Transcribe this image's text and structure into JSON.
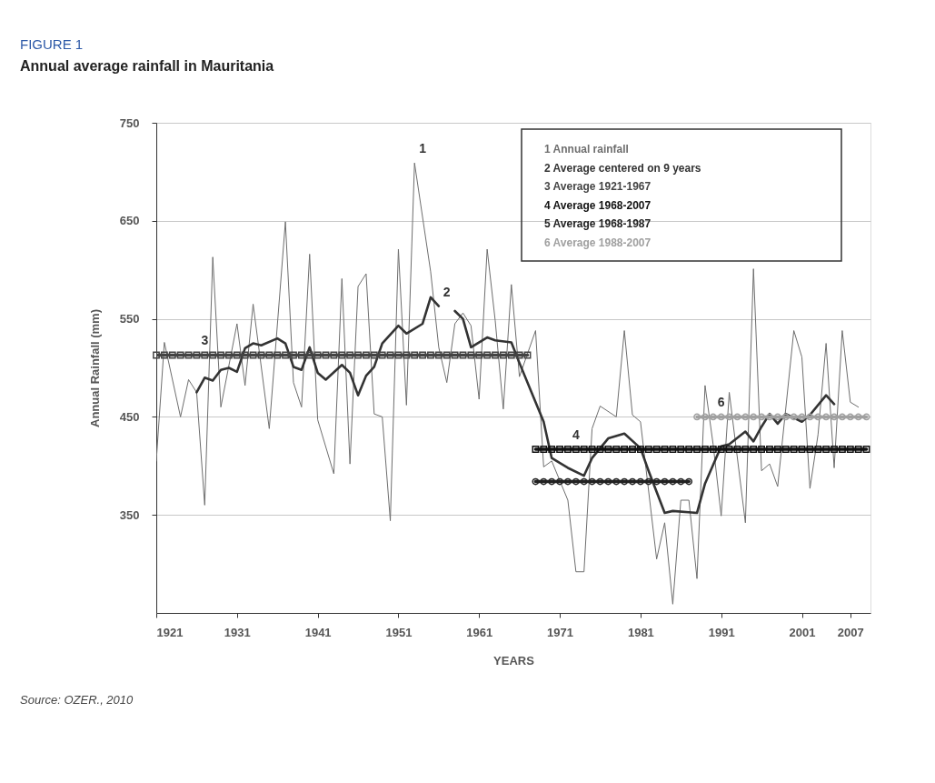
{
  "chart_data": {
    "type": "line",
    "title": "FIGURE 1",
    "subtitle": "Annual average rainfall in Mauritania",
    "xlabel": "YEARS",
    "ylabel": "Annual Rainfall (mm)",
    "xlim": [
      1921,
      2009.5
    ],
    "xticks": [
      1921,
      1931,
      1941,
      1951,
      1961,
      1971,
      1981,
      1991,
      2001,
      2007
    ],
    "ylim": [
      250,
      750
    ],
    "yticks": [
      350,
      450,
      550,
      650,
      750
    ],
    "grid": "y",
    "legend": "top right",
    "series": [
      {
        "name": "1 Annual rainfall",
        "color": "#6e6e6e",
        "marker": "none",
        "x": [
          1921,
          1922,
          1924,
          1925,
          1926,
          1927,
          1928,
          1929,
          1931,
          1932,
          1933,
          1935,
          1937,
          1938,
          1939,
          1940,
          1941,
          1943,
          1944,
          1945,
          1946,
          1947,
          1948,
          1949,
          1950,
          1951,
          1952,
          1953,
          1955,
          1956,
          1957,
          1958,
          1959,
          1960,
          1961,
          1962,
          1963,
          1964,
          1965,
          1966,
          1968,
          1969,
          1970,
          1972,
          1973,
          1974,
          1975,
          1976,
          1978,
          1979,
          1980,
          1981,
          1983,
          1984,
          1985,
          1986,
          1987,
          1988,
          1989,
          1990,
          1991,
          1992,
          1994,
          1995,
          1996,
          1997,
          1998,
          2000,
          2001,
          2002,
          2003,
          2004,
          2005,
          2006,
          2007,
          2008
        ],
        "values": [
          405,
          526,
          450,
          488,
          475,
          360,
          613,
          460,
          545,
          482,
          565,
          438,
          649,
          485,
          460,
          616,
          447,
          392,
          591,
          402,
          583,
          596,
          453,
          450,
          344,
          621,
          462,
          709,
          598,
          521,
          485,
          545,
          556,
          543,
          468,
          621,
          548,
          458,
          585,
          491,
          538,
          399,
          405,
          365,
          292,
          292,
          438,
          461,
          450,
          538,
          452,
          445,
          305,
          342,
          259,
          365,
          365,
          285,
          482,
          422,
          349,
          475,
          342,
          601,
          395,
          402,
          379,
          538,
          511,
          377,
          432,
          525,
          398,
          538,
          465,
          460
        ]
      },
      {
        "name": "2 Average centered on 9 years",
        "color": "#333333",
        "marker": "none",
        "x": [
          1926,
          1927,
          1928,
          1929,
          1930,
          1931,
          1932,
          1933,
          1934,
          1936,
          1937,
          1938,
          1939,
          1940,
          1941,
          1942,
          1944,
          1945,
          1946,
          1947,
          1948,
          1949,
          1951,
          1952,
          1954,
          1955,
          1956,
          1957,
          1958,
          1959,
          1960,
          1962,
          1963,
          1965,
          1966,
          1968,
          1969,
          1970,
          1972,
          1974,
          1975,
          1977,
          1979,
          1981,
          1982,
          1984,
          1985,
          1988,
          1989,
          1991,
          1992,
          1994,
          1995,
          1996,
          1997,
          1998,
          1999,
          2001,
          2002,
          2004,
          2005
        ],
        "values": [
          475,
          490,
          487,
          498,
          500,
          496,
          520,
          525,
          523,
          530,
          525,
          501,
          498,
          521,
          495,
          488,
          503,
          495,
          472,
          492,
          501,
          525,
          543,
          535,
          545,
          572,
          563,
          null,
          558,
          550,
          521,
          531,
          528,
          526,
          505,
          465,
          445,
          408,
          398,
          390,
          408,
          428,
          433,
          418,
          395,
          352,
          354,
          352,
          382,
          420,
          422,
          435,
          425,
          440,
          453,
          443,
          453,
          445,
          452,
          472,
          463
        ]
      },
      {
        "name": "3 Average 1921-1967",
        "color": "#444444",
        "marker": "square",
        "x": [
          1921,
          1922,
          1923,
          1924,
          1925,
          1926,
          1927,
          1928,
          1929,
          1930,
          1931,
          1932,
          1933,
          1934,
          1935,
          1936,
          1937,
          1938,
          1939,
          1940,
          1941,
          1942,
          1943,
          1944,
          1945,
          1946,
          1947,
          1948,
          1949,
          1950,
          1951,
          1952,
          1953,
          1954,
          1955,
          1956,
          1957,
          1958,
          1959,
          1960,
          1961,
          1962,
          1963,
          1964,
          1965,
          1966,
          1967
        ],
        "values": [
          513,
          513,
          513,
          513,
          513,
          513,
          513,
          513,
          513,
          513,
          513,
          513,
          513,
          513,
          513,
          513,
          513,
          513,
          513,
          513,
          513,
          513,
          513,
          513,
          513,
          513,
          513,
          513,
          513,
          513,
          513,
          513,
          513,
          513,
          513,
          513,
          513,
          513,
          513,
          513,
          513,
          513,
          513,
          513,
          513,
          513,
          513
        ]
      },
      {
        "name": "4 Average 1968-2007",
        "color": "#111111",
        "marker": "square",
        "x": [
          1968,
          1969,
          1970,
          1971,
          1972,
          1973,
          1974,
          1975,
          1976,
          1977,
          1978,
          1979,
          1980,
          1981,
          1982,
          1983,
          1984,
          1985,
          1986,
          1987,
          1988,
          1989,
          1990,
          1991,
          1992,
          1993,
          1994,
          1995,
          1996,
          1997,
          1998,
          1999,
          2000,
          2001,
          2002,
          2003,
          2004,
          2005,
          2006,
          2007,
          2008,
          2009
        ],
        "values": [
          417,
          417,
          417,
          417,
          417,
          417,
          417,
          417,
          417,
          417,
          417,
          417,
          417,
          417,
          417,
          417,
          417,
          417,
          417,
          417,
          417,
          417,
          417,
          417,
          417,
          417,
          417,
          417,
          417,
          417,
          417,
          417,
          417,
          417,
          417,
          417,
          417,
          417,
          417,
          417,
          417,
          417
        ]
      },
      {
        "name": "5 Average 1968-1987",
        "color": "#222222",
        "marker": "circle",
        "x": [
          1968,
          1969,
          1970,
          1971,
          1972,
          1973,
          1974,
          1975,
          1976,
          1977,
          1978,
          1979,
          1980,
          1981,
          1982,
          1983,
          1984,
          1985,
          1986,
          1987
        ],
        "values": [
          384,
          384,
          384,
          384,
          384,
          384,
          384,
          384,
          384,
          384,
          384,
          384,
          384,
          384,
          384,
          384,
          384,
          384,
          384,
          384
        ]
      },
      {
        "name": "6 Average 1988-2007",
        "color": "#a0a0a0",
        "marker": "circle",
        "x": [
          1988,
          1989,
          1990,
          1991,
          1992,
          1993,
          1994,
          1995,
          1996,
          1997,
          1998,
          1999,
          2000,
          2001,
          2002,
          2003,
          2004,
          2005,
          2006,
          2007,
          2008,
          2009
        ],
        "values": [
          450,
          450,
          450,
          450,
          450,
          450,
          450,
          450,
          450,
          450,
          450,
          450,
          450,
          450,
          450,
          450,
          450,
          450,
          450,
          450,
          450,
          450
        ]
      }
    ],
    "annotations": [
      {
        "text": "1",
        "x": 1953,
        "y": 709
      },
      {
        "text": "2",
        "x": 1956,
        "y": 563
      },
      {
        "text": "3",
        "x": 1926,
        "y": 513
      },
      {
        "text": "4",
        "x": 1972,
        "y": 417
      },
      {
        "text": "6",
        "x": 1990,
        "y": 450
      },
      "Source: OZER., 2010"
    ]
  }
}
